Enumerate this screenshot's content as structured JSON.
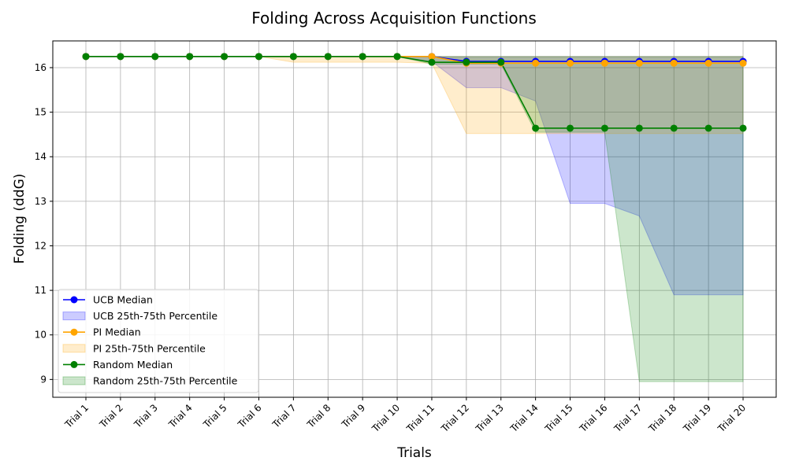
{
  "chart_data": {
    "type": "line",
    "title": "Folding Across Acquisition Functions",
    "xlabel": "Trials",
    "ylabel": "Folding (ddG)",
    "categories": [
      "Trial 1",
      "Trial 2",
      "Trial 3",
      "Trial 4",
      "Trial 5",
      "Trial 6",
      "Trial 7",
      "Trial 8",
      "Trial 9",
      "Trial 10",
      "Trial 11",
      "Trial 12",
      "Trial 13",
      "Trial 14",
      "Trial 15",
      "Trial 16",
      "Trial 17",
      "Trial 18",
      "Trial 19",
      "Trial 20"
    ],
    "ylim": [
      8.6,
      16.6
    ],
    "yticks": [
      9,
      10,
      11,
      12,
      13,
      14,
      15,
      16
    ],
    "grid": true,
    "legend_position": "lower-left",
    "series": [
      {
        "name": "UCB Median",
        "band_name": "UCB 25th-75th Percentile",
        "color": "#0000ff",
        "band_color": "#0000ff",
        "band_opacity": 0.2,
        "median": [
          16.25,
          16.25,
          16.25,
          16.25,
          16.25,
          16.25,
          16.25,
          16.25,
          16.25,
          16.25,
          16.25,
          16.14,
          16.14,
          16.14,
          16.14,
          16.14,
          16.14,
          16.14,
          16.14,
          16.14
        ],
        "q25": [
          16.25,
          16.25,
          16.25,
          16.25,
          16.25,
          16.25,
          16.25,
          16.25,
          16.25,
          16.25,
          16.14,
          15.55,
          15.55,
          15.25,
          12.95,
          12.95,
          12.67,
          10.9,
          10.9,
          10.9
        ],
        "q75": [
          16.25,
          16.25,
          16.25,
          16.25,
          16.25,
          16.25,
          16.25,
          16.25,
          16.25,
          16.25,
          16.25,
          16.25,
          16.25,
          16.25,
          16.25,
          16.25,
          16.25,
          16.25,
          16.25,
          16.25
        ]
      },
      {
        "name": "PI Median",
        "band_name": "PI 25th-75th Percentile",
        "color": "#ffa500",
        "band_color": "#ffa500",
        "band_opacity": 0.2,
        "median": [
          16.25,
          16.25,
          16.25,
          16.25,
          16.25,
          16.25,
          16.25,
          16.25,
          16.25,
          16.25,
          16.25,
          16.1,
          16.1,
          16.1,
          16.1,
          16.1,
          16.1,
          16.1,
          16.1,
          16.1
        ],
        "q25": [
          16.25,
          16.25,
          16.25,
          16.25,
          16.25,
          16.25,
          16.12,
          16.12,
          16.12,
          16.12,
          16.1,
          14.52,
          14.52,
          14.52,
          14.52,
          14.52,
          14.52,
          14.52,
          14.52,
          14.52
        ],
        "q75": [
          16.25,
          16.25,
          16.25,
          16.25,
          16.25,
          16.25,
          16.25,
          16.25,
          16.25,
          16.25,
          16.25,
          16.25,
          16.25,
          16.25,
          16.25,
          16.25,
          16.25,
          16.25,
          16.25,
          16.25
        ]
      },
      {
        "name": "Random Median",
        "band_name": "Random 25th-75th Percentile",
        "color": "#008000",
        "band_color": "#008000",
        "band_opacity": 0.2,
        "median": [
          16.25,
          16.25,
          16.25,
          16.25,
          16.25,
          16.25,
          16.25,
          16.25,
          16.25,
          16.25,
          16.12,
          16.12,
          16.12,
          14.64,
          14.64,
          14.64,
          14.64,
          14.64,
          14.64,
          14.64
        ],
        "q25": [
          16.25,
          16.25,
          16.25,
          16.25,
          16.25,
          16.25,
          16.25,
          16.25,
          16.25,
          16.25,
          16.08,
          16.08,
          16.08,
          14.55,
          14.55,
          14.55,
          8.95,
          8.95,
          8.95,
          8.95
        ],
        "q75": [
          16.25,
          16.25,
          16.25,
          16.25,
          16.25,
          16.25,
          16.25,
          16.25,
          16.25,
          16.25,
          16.25,
          16.25,
          16.25,
          16.25,
          16.25,
          16.25,
          16.25,
          16.25,
          16.25,
          16.25
        ]
      }
    ]
  }
}
